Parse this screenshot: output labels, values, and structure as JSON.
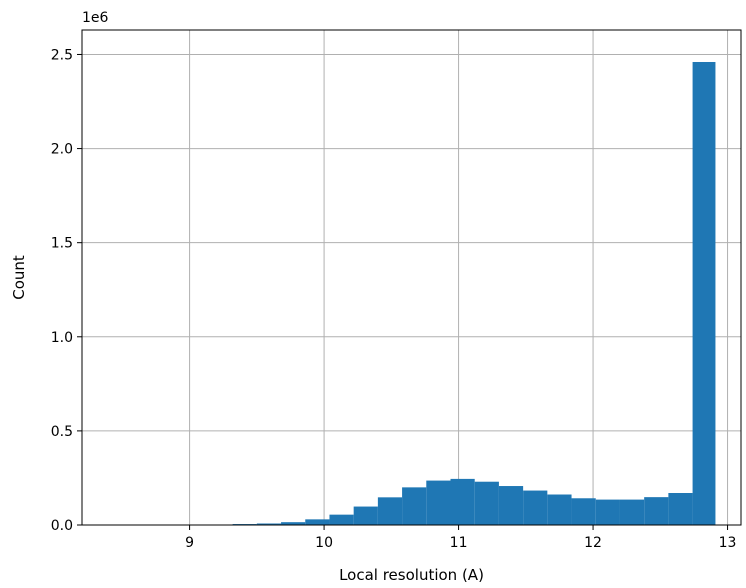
{
  "chart_data": {
    "type": "bar",
    "subtype": "histogram",
    "title": "",
    "xlabel": "Local resolution (A)",
    "ylabel": "Count",
    "y_offset_label": "1e6",
    "xlim": [
      8.2,
      13.1
    ],
    "ylim": [
      0,
      2.63
    ],
    "x_ticks": [
      9,
      10,
      11,
      12,
      13
    ],
    "x_tick_labels": [
      "9",
      "10",
      "11",
      "12",
      "13"
    ],
    "y_ticks": [
      0.0,
      0.5,
      1.0,
      1.5,
      2.0,
      2.5
    ],
    "y_tick_labels": [
      "0.0",
      "0.5",
      "1.0",
      "1.5",
      "2.0",
      "2.5"
    ],
    "grid": true,
    "bar_color": "#1f77b4",
    "bins": [
      [
        8.43,
        8.61,
        0.0
      ],
      [
        8.61,
        8.79,
        0.0
      ],
      [
        8.79,
        8.97,
        0.0
      ],
      [
        8.97,
        9.15,
        0.0
      ],
      [
        9.15,
        9.32,
        0.0
      ],
      [
        9.32,
        9.5,
        0.005
      ],
      [
        9.5,
        9.68,
        0.008
      ],
      [
        9.68,
        9.86,
        0.015
      ],
      [
        9.86,
        10.04,
        0.03
      ],
      [
        10.04,
        10.22,
        0.055
      ],
      [
        10.22,
        10.4,
        0.098
      ],
      [
        10.4,
        10.58,
        0.147
      ],
      [
        10.58,
        10.76,
        0.2
      ],
      [
        10.76,
        10.94,
        0.236
      ],
      [
        10.94,
        11.12,
        0.245
      ],
      [
        11.12,
        11.3,
        0.23
      ],
      [
        11.3,
        11.48,
        0.207
      ],
      [
        11.48,
        11.66,
        0.183
      ],
      [
        11.66,
        11.84,
        0.162
      ],
      [
        11.84,
        12.02,
        0.142
      ],
      [
        12.02,
        12.2,
        0.135
      ],
      [
        12.2,
        12.38,
        0.135
      ],
      [
        12.38,
        12.56,
        0.148
      ],
      [
        12.56,
        12.74,
        0.17
      ],
      [
        12.74,
        12.91,
        2.46
      ]
    ]
  }
}
